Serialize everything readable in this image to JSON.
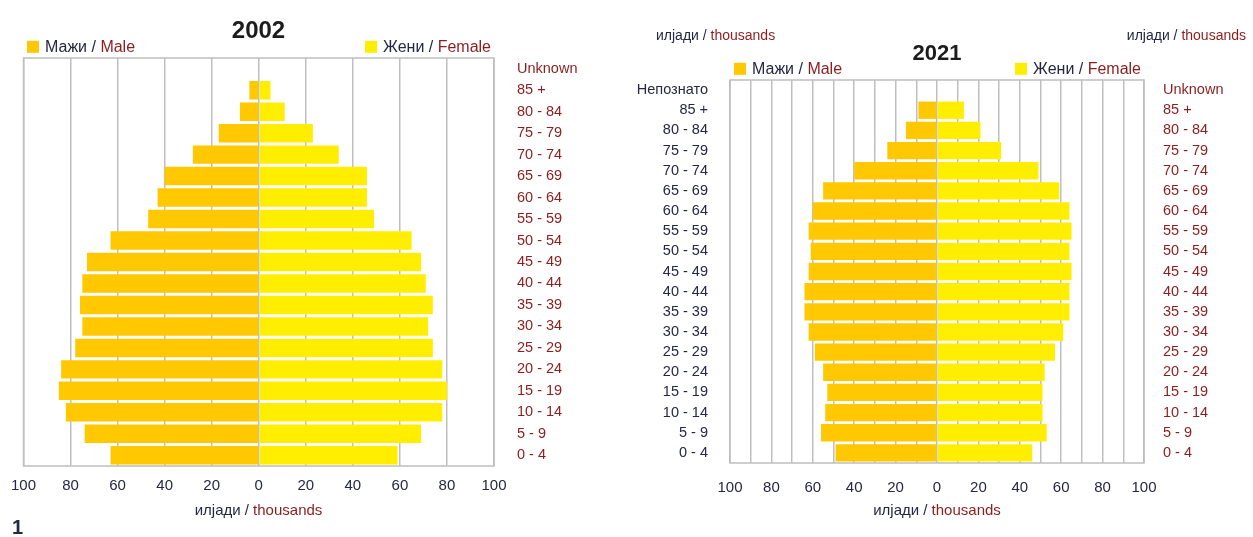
{
  "chart_data": [
    {
      "type": "bar",
      "orientation": "horizontal",
      "stacked": true,
      "title": "2002",
      "xlabel": "илјади / thousands",
      "legend": "top",
      "categories": [
        "Unknown",
        "85 +",
        "80 - 84",
        "75 - 79",
        "70 - 74",
        "65 - 69",
        "60 - 64",
        "55 - 59",
        "50 - 54",
        "45 - 49",
        "40 - 44",
        "35 - 39",
        "30 - 34",
        "25 - 29",
        "20 - 24",
        "15 - 19",
        "10 - 14",
        "5 - 9",
        "0 - 4"
      ],
      "series": [
        {
          "name": "Мажи / Male",
          "color": "#ffc800",
          "values": [
            0,
            -4,
            -8,
            -17,
            -28,
            -40,
            -43,
            -47,
            -63,
            -73,
            -75,
            -76,
            -75,
            -78,
            -84,
            -85,
            -82,
            -74,
            -63
          ]
        },
        {
          "name": "Жени / Female",
          "color": "#ffee00",
          "values": [
            0,
            5,
            11,
            23,
            34,
            46,
            46,
            49,
            65,
            69,
            71,
            74,
            72,
            74,
            78,
            80,
            78,
            69,
            59
          ]
        }
      ],
      "xlim": [
        -100,
        100
      ],
      "xticks": [
        {
          "value": -100,
          "label": "100"
        },
        {
          "value": -80,
          "label": "80"
        },
        {
          "value": -60,
          "label": "60"
        },
        {
          "value": -40,
          "label": "40"
        },
        {
          "value": -20,
          "label": "20"
        },
        0,
        20,
        40,
        60,
        80,
        100
      ],
      "grid": "x",
      "annotations": [
        "1"
      ]
    },
    {
      "type": "bar",
      "orientation": "horizontal",
      "stacked": true,
      "title": "2021",
      "xlabel": "илјади / thousands",
      "legend": "top",
      "categories": [
        "Непознато",
        "85 +",
        "80 - 84",
        "75 - 79",
        "70 - 74",
        "65 - 69",
        "60 - 64",
        "55 - 59",
        "50 - 54",
        "45 - 49",
        "40 - 44",
        "35 - 39",
        "30 - 34",
        "25 - 29",
        "20 - 24",
        "15 - 19",
        "10 - 14",
        "5 - 9",
        "0 - 4"
      ],
      "y2_categories": [
        "Unknown",
        "85 +",
        "80 - 84",
        "75 - 79",
        "70 - 74",
        "65 - 69",
        "60 - 64",
        "55 - 59",
        "50 - 54",
        "45 - 49",
        "40 - 44",
        "35 - 39",
        "30 - 34",
        "25 - 29",
        "20 - 24",
        "15 - 19",
        "10 - 14",
        "5 - 9",
        "0 - 4"
      ],
      "series": [
        {
          "name": "Мажи / Male",
          "color": "#ffc800",
          "values": [
            null,
            -9,
            -15,
            -24,
            -40,
            -55,
            -60,
            -62,
            -61,
            -62,
            -64,
            -64,
            -62,
            -59,
            -55,
            -53,
            -54,
            -56,
            -49
          ]
        },
        {
          "name": "Жени / Female",
          "color": "#ffee00",
          "values": [
            null,
            13,
            21,
            31,
            49,
            59,
            64,
            65,
            64,
            65,
            64,
            64,
            61,
            57,
            52,
            51,
            51,
            53,
            46
          ]
        }
      ],
      "xlim": [
        -100,
        100
      ],
      "xticks": [
        {
          "value": -100,
          "label": "100"
        },
        {
          "value": -90,
          "label": null
        },
        {
          "value": -80,
          "label": "80"
        },
        {
          "value": -70,
          "label": null
        },
        {
          "value": -60,
          "label": "60"
        },
        {
          "value": -50,
          "label": null
        },
        {
          "value": -40,
          "label": "40"
        },
        {
          "value": -30,
          "label": null
        },
        {
          "value": -20,
          "label": "20"
        },
        {
          "value": -10,
          "label": null
        },
        0,
        {
          "value": 10,
          "label": null
        },
        20,
        {
          "value": 30,
          "label": null
        },
        40,
        {
          "value": 50,
          "label": null
        },
        60,
        {
          "value": 70,
          "label": null
        },
        80,
        {
          "value": 90,
          "label": null
        },
        100
      ],
      "grid": "x",
      "annotations": [
        "илјади / thousands",
        "илјади / thousands"
      ]
    }
  ]
}
